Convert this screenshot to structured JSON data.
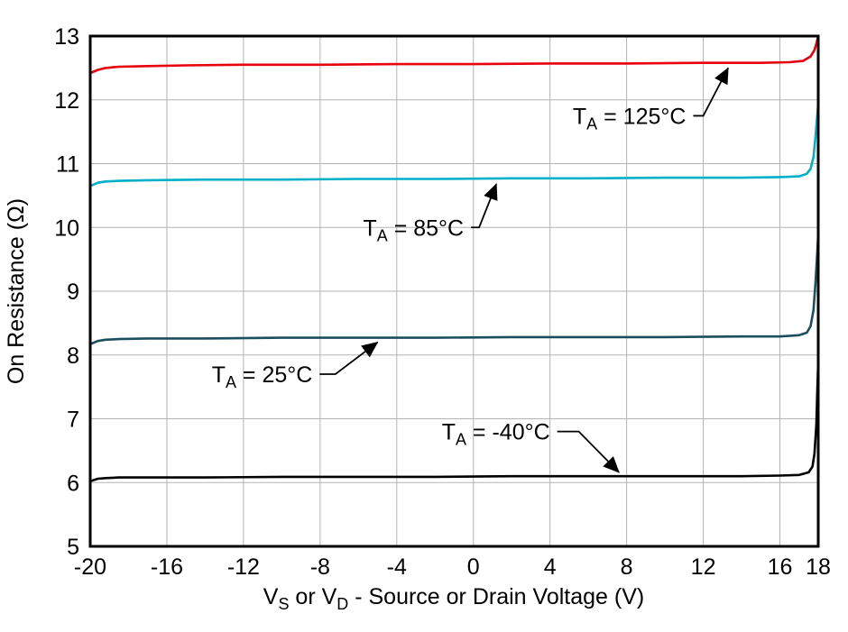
{
  "chart_data": {
    "type": "line",
    "title": "",
    "ylabel": "On Resistance (Ω)",
    "xlabel_parts": [
      {
        "t": "V"
      },
      {
        "t": "S",
        "sub": true
      },
      {
        "t": " or V"
      },
      {
        "t": "D",
        "sub": true
      },
      {
        "t": " - Source or Drain Voltage (V)"
      }
    ],
    "xlim": [
      -20,
      18
    ],
    "ylim": [
      5,
      13
    ],
    "xticks": [
      -20,
      -16,
      -12,
      -8,
      -4,
      0,
      4,
      8,
      12,
      16,
      18
    ],
    "yticks": [
      5,
      6,
      7,
      8,
      9,
      10,
      11,
      12,
      13
    ],
    "grid": true,
    "grid_color": "#b3b3b3",
    "axis_color": "#000000",
    "series": [
      {
        "name": "TA = 125°C",
        "color": "#e8000d",
        "points": [
          [
            -20,
            12.42
          ],
          [
            -19.6,
            12.47
          ],
          [
            -19.2,
            12.5
          ],
          [
            -18.5,
            12.52
          ],
          [
            -17,
            12.53
          ],
          [
            -15,
            12.54
          ],
          [
            -12,
            12.55
          ],
          [
            -8,
            12.55
          ],
          [
            -4,
            12.56
          ],
          [
            0,
            12.56
          ],
          [
            4,
            12.57
          ],
          [
            8,
            12.57
          ],
          [
            12,
            12.58
          ],
          [
            15,
            12.58
          ],
          [
            16.5,
            12.59
          ],
          [
            17.2,
            12.61
          ],
          [
            17.6,
            12.68
          ],
          [
            17.8,
            12.78
          ],
          [
            17.9,
            12.88
          ],
          [
            18,
            13.0
          ]
        ]
      },
      {
        "name": "TA = 85°C",
        "color": "#00b0c8",
        "points": [
          [
            -20,
            10.65
          ],
          [
            -19.6,
            10.7
          ],
          [
            -19.2,
            10.72
          ],
          [
            -18.5,
            10.73
          ],
          [
            -17,
            10.74
          ],
          [
            -14,
            10.75
          ],
          [
            -10,
            10.75
          ],
          [
            -6,
            10.76
          ],
          [
            -2,
            10.76
          ],
          [
            2,
            10.77
          ],
          [
            6,
            10.77
          ],
          [
            10,
            10.78
          ],
          [
            14,
            10.78
          ],
          [
            16,
            10.79
          ],
          [
            17,
            10.8
          ],
          [
            17.4,
            10.84
          ],
          [
            17.6,
            10.92
          ],
          [
            17.75,
            11.1
          ],
          [
            17.85,
            11.4
          ],
          [
            17.95,
            11.75
          ],
          [
            18,
            11.95
          ]
        ]
      },
      {
        "name": "TA = 25°C",
        "color": "#1b4f5e",
        "points": [
          [
            -20,
            8.17
          ],
          [
            -19.6,
            8.22
          ],
          [
            -19.2,
            8.24
          ],
          [
            -18.5,
            8.25
          ],
          [
            -17,
            8.26
          ],
          [
            -14,
            8.26
          ],
          [
            -10,
            8.27
          ],
          [
            -6,
            8.27
          ],
          [
            -2,
            8.27
          ],
          [
            2,
            8.28
          ],
          [
            6,
            8.28
          ],
          [
            10,
            8.28
          ],
          [
            14,
            8.29
          ],
          [
            16,
            8.29
          ],
          [
            17,
            8.31
          ],
          [
            17.4,
            8.35
          ],
          [
            17.6,
            8.45
          ],
          [
            17.75,
            8.7
          ],
          [
            17.85,
            9.1
          ],
          [
            17.95,
            9.6
          ],
          [
            18,
            9.9
          ]
        ]
      },
      {
        "name": "TA = -40°C",
        "color": "#000000",
        "points": [
          [
            -20,
            6.02
          ],
          [
            -19.6,
            6.06
          ],
          [
            -19.2,
            6.07
          ],
          [
            -18.5,
            6.08
          ],
          [
            -17,
            6.08
          ],
          [
            -14,
            6.08
          ],
          [
            -10,
            6.09
          ],
          [
            -6,
            6.09
          ],
          [
            -2,
            6.09
          ],
          [
            2,
            6.1
          ],
          [
            6,
            6.1
          ],
          [
            10,
            6.1
          ],
          [
            14,
            6.1
          ],
          [
            16,
            6.11
          ],
          [
            17,
            6.12
          ],
          [
            17.5,
            6.16
          ],
          [
            17.7,
            6.25
          ],
          [
            17.8,
            6.45
          ],
          [
            17.9,
            6.9
          ],
          [
            17.95,
            7.4
          ],
          [
            18,
            7.9
          ]
        ]
      }
    ],
    "annotations": [
      {
        "prefix": "T",
        "sub": "A",
        "suffix": " = 125°C",
        "label_x": 11.1,
        "label_y": 11.75,
        "elbow_x": 12.0,
        "tip_x": 13.3,
        "tip_y": 12.5
      },
      {
        "prefix": "T",
        "sub": "A",
        "suffix": " = 85°C",
        "label_x": -0.5,
        "label_y": 10.0,
        "elbow_x": 0.3,
        "tip_x": 1.2,
        "tip_y": 10.68
      },
      {
        "prefix": "T",
        "sub": "A",
        "suffix": " = 25°C",
        "label_x": -8.4,
        "label_y": 7.7,
        "elbow_x": -7.2,
        "tip_x": -5.0,
        "tip_y": 8.2
      },
      {
        "prefix": "T",
        "sub": "A",
        "suffix": " = -40°C",
        "label_x": 4.0,
        "label_y": 6.8,
        "elbow_x": 5.5,
        "tip_x": 7.6,
        "tip_y": 6.16
      }
    ]
  }
}
